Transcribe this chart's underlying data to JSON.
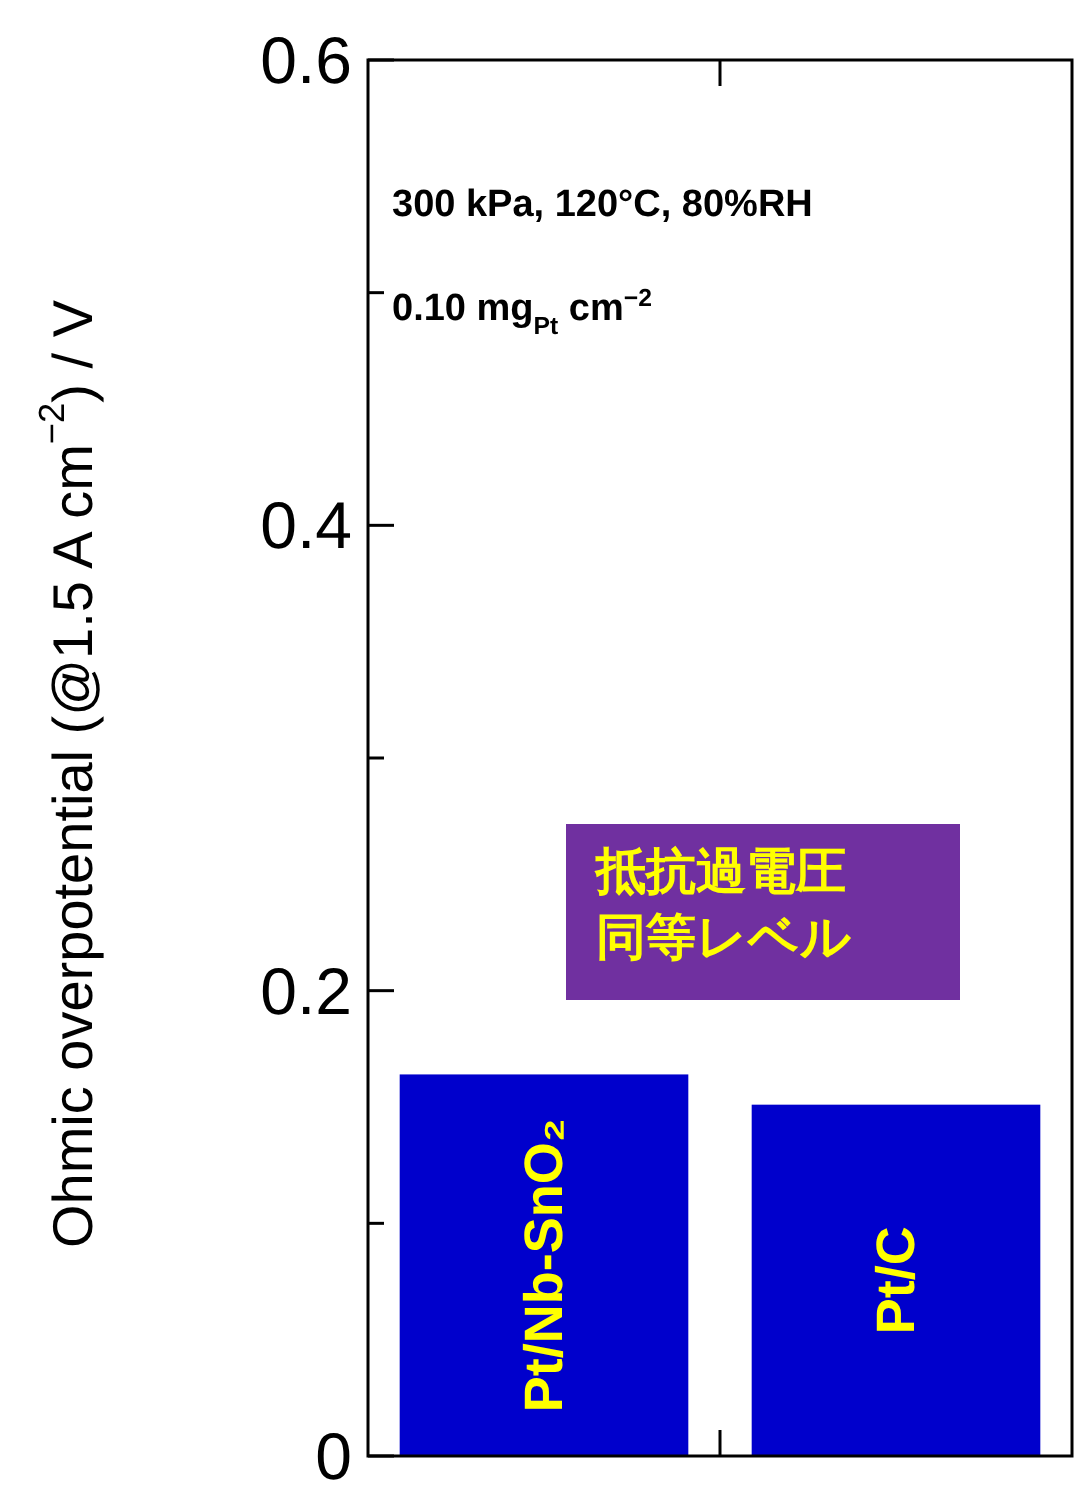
{
  "chart_data": {
    "type": "bar",
    "ylabel": "Ohmic overpotential (@1.5 A cm$^{−2}$) / V",
    "categories": [
      "Pt/Nb-SnO₂",
      "Pt/C"
    ],
    "values": [
      0.164,
      0.151
    ],
    "color": "#0000cc",
    "ylim": [
      0,
      0.6
    ],
    "yticks": [
      0,
      {
        "value": 0.1,
        "label": null
      },
      0.2,
      {
        "value": 0.3,
        "label": null
      },
      0.4,
      {
        "value": 0.5,
        "label": null
      },
      0.6
    ],
    "annotations": [
      "300 kPa, 120°C, 80%RH",
      "0.10 mg$_{Pt}$ cm$^{−2}$",
      "抵抗過電圧",
      "同等レベル"
    ],
    "grid": false
  }
}
